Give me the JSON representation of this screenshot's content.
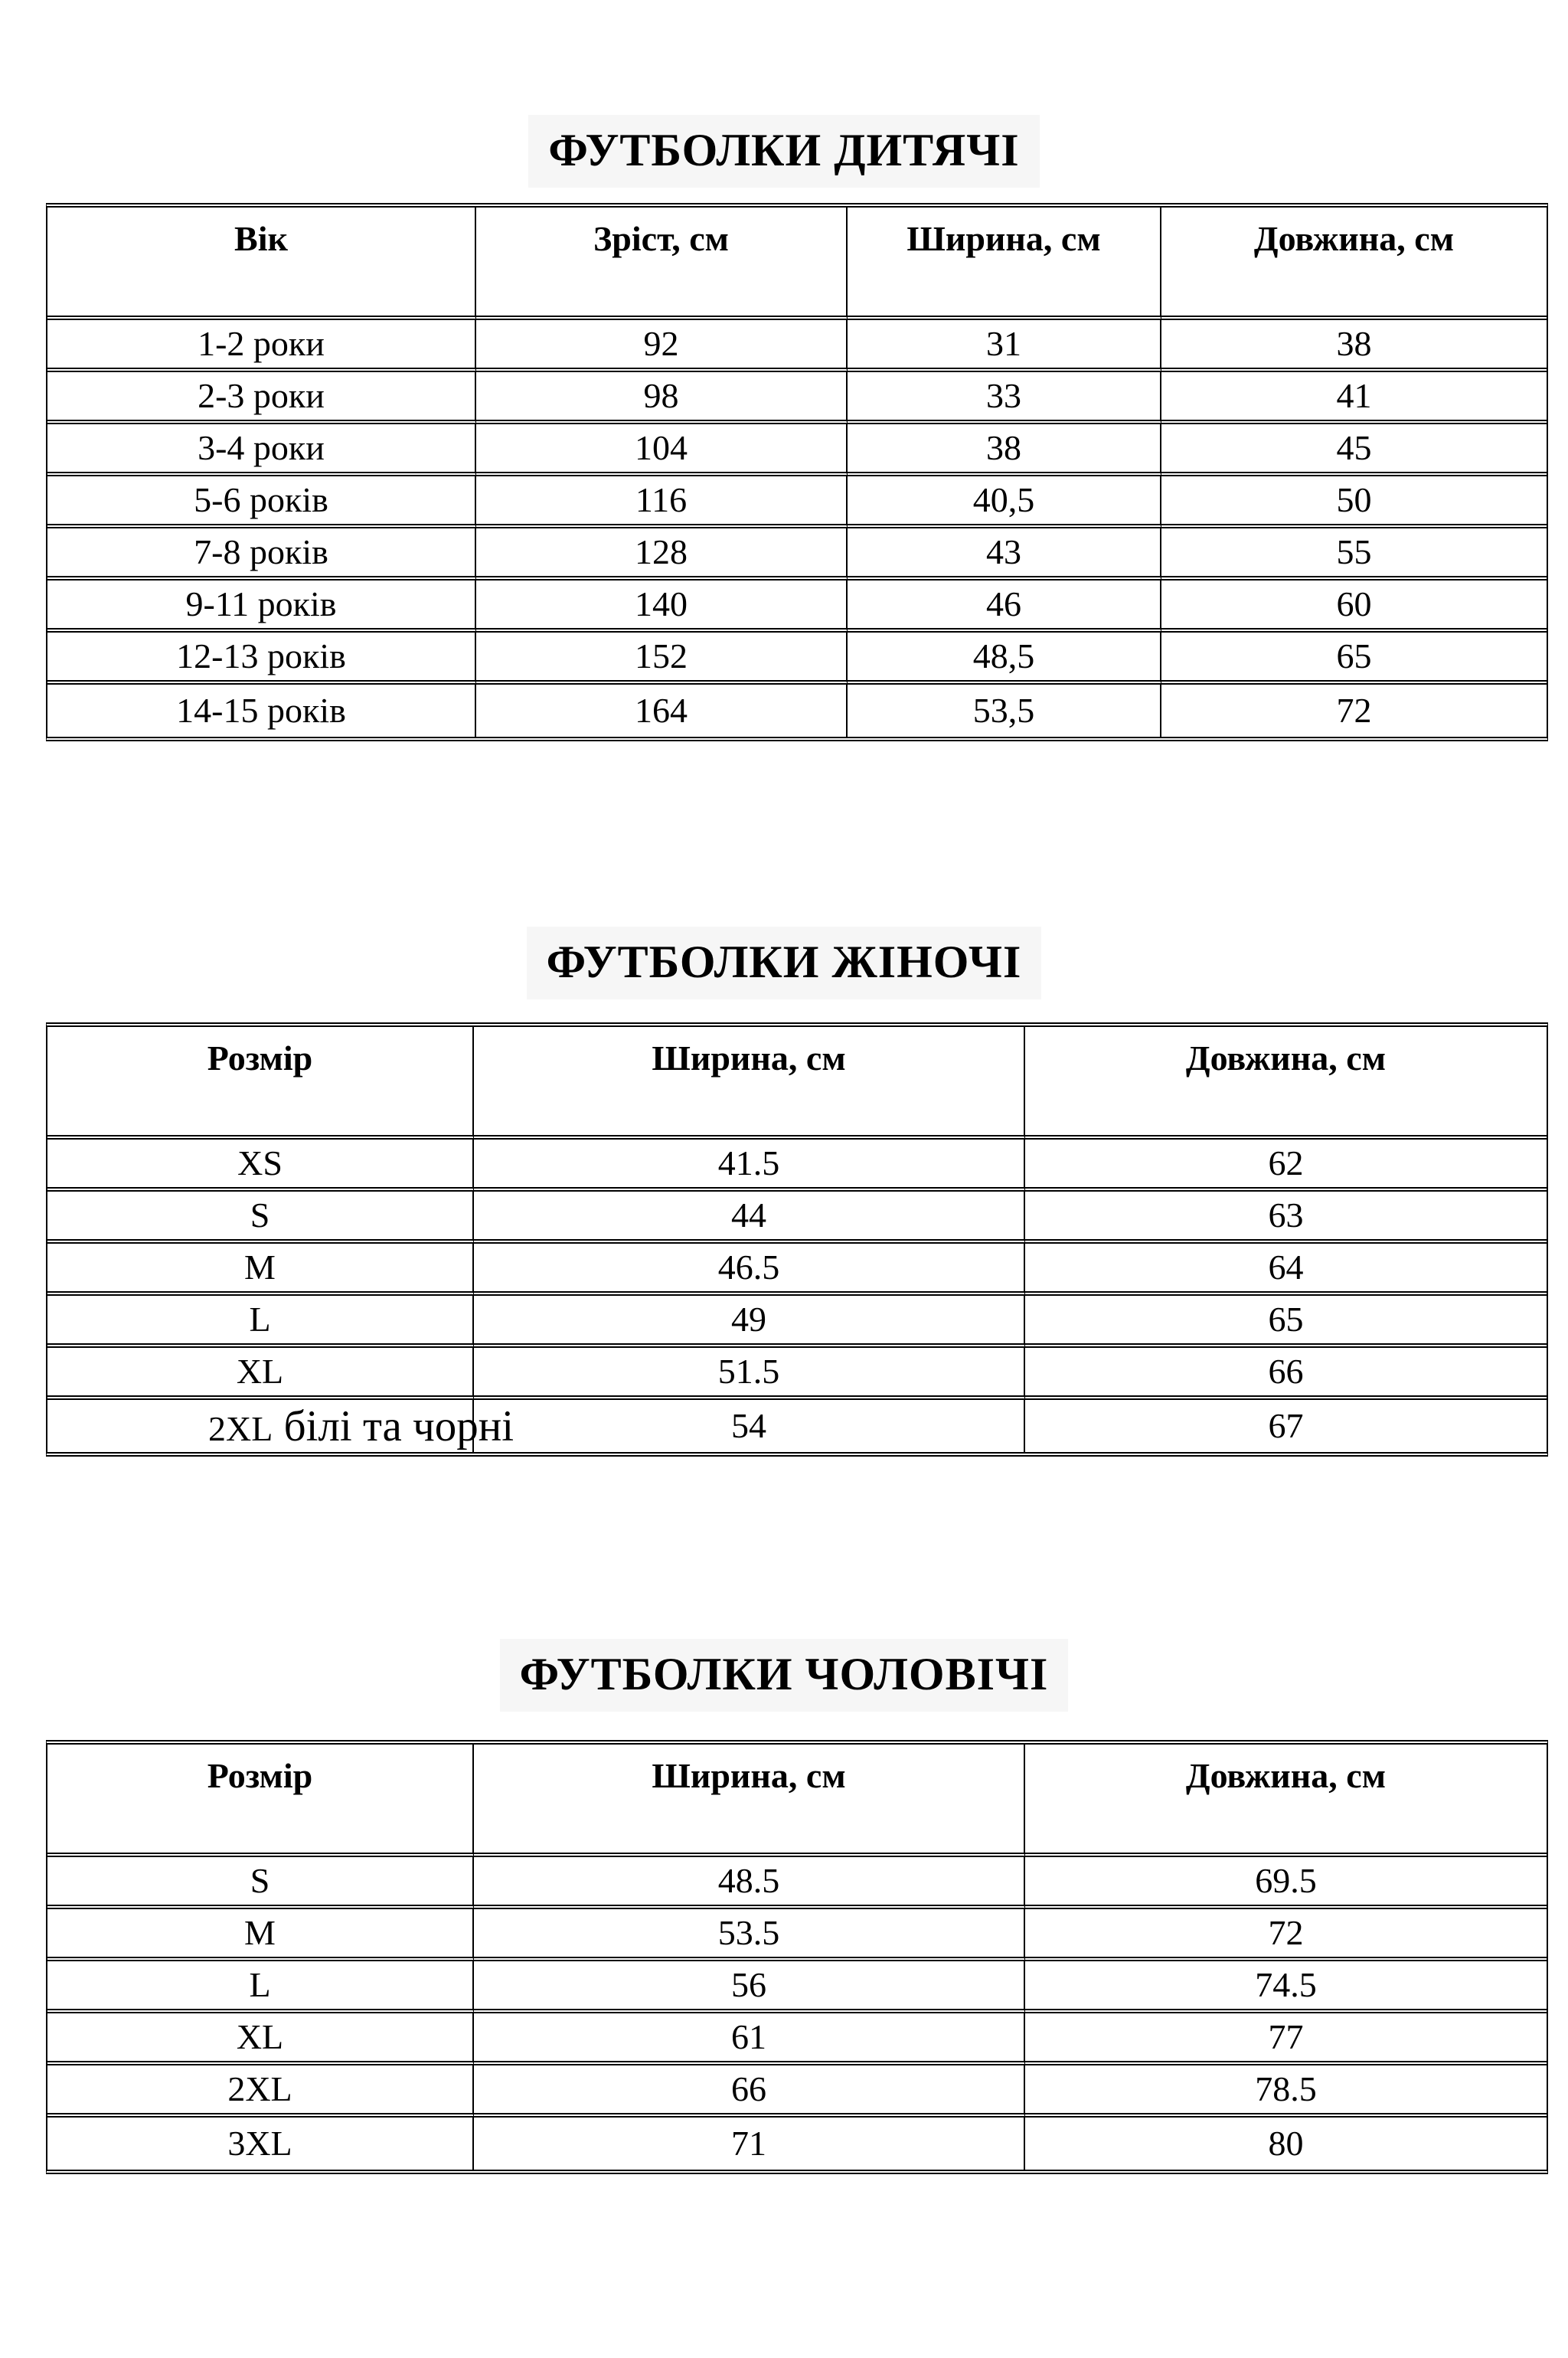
{
  "page": {
    "background_color": "#ffffff",
    "title_highlight_color": "#f6f6f6",
    "border_color": "#000000"
  },
  "tables": [
    {
      "title": "ФУТБОЛКИ ДИТЯЧІ",
      "columns": [
        "Вік",
        "Зріст, см",
        "Ширина, см",
        "Довжина, см"
      ],
      "rows": [
        [
          "1-2 роки",
          "92",
          "31",
          "38"
        ],
        [
          "2-3 роки",
          "98",
          "33",
          "41"
        ],
        [
          "3-4 роки",
          "104",
          "38",
          "45"
        ],
        [
          "5-6 років",
          "116",
          "40,5",
          "50"
        ],
        [
          "7-8 років",
          "128",
          "43",
          "55"
        ],
        [
          "9-11 років",
          "140",
          "46",
          "60"
        ],
        [
          "12-13 років",
          "152",
          "48,5",
          "65"
        ],
        [
          "14-15 років",
          "164",
          "53,5",
          "72"
        ]
      ]
    },
    {
      "title": "ФУТБОЛКИ ЖІНОЧІ",
      "columns": [
        "Розмір",
        "Ширина, см",
        "Довжина, см"
      ],
      "rows": [
        [
          "XS",
          "41.5",
          "62"
        ],
        [
          "S",
          "44",
          "63"
        ],
        [
          "M",
          "46.5",
          "64"
        ],
        [
          "L",
          "49",
          "65"
        ],
        [
          "XL",
          "51.5",
          "66"
        ],
        [
          "2XL",
          "54",
          "67"
        ]
      ],
      "note": {
        "row": 5,
        "col": 0,
        "text": "білі та чорні"
      }
    },
    {
      "title": "ФУТБОЛКИ ЧОЛОВІЧІ",
      "columns": [
        "Розмір",
        "Ширина, см",
        "Довжина, см"
      ],
      "rows": [
        [
          "S",
          "48.5",
          "69.5"
        ],
        [
          "M",
          "53.5",
          "72"
        ],
        [
          "L",
          "56",
          "74.5"
        ],
        [
          "XL",
          "61",
          "77"
        ],
        [
          "2XL",
          "66",
          "78.5"
        ],
        [
          "3XL",
          "71",
          "80"
        ]
      ]
    }
  ]
}
